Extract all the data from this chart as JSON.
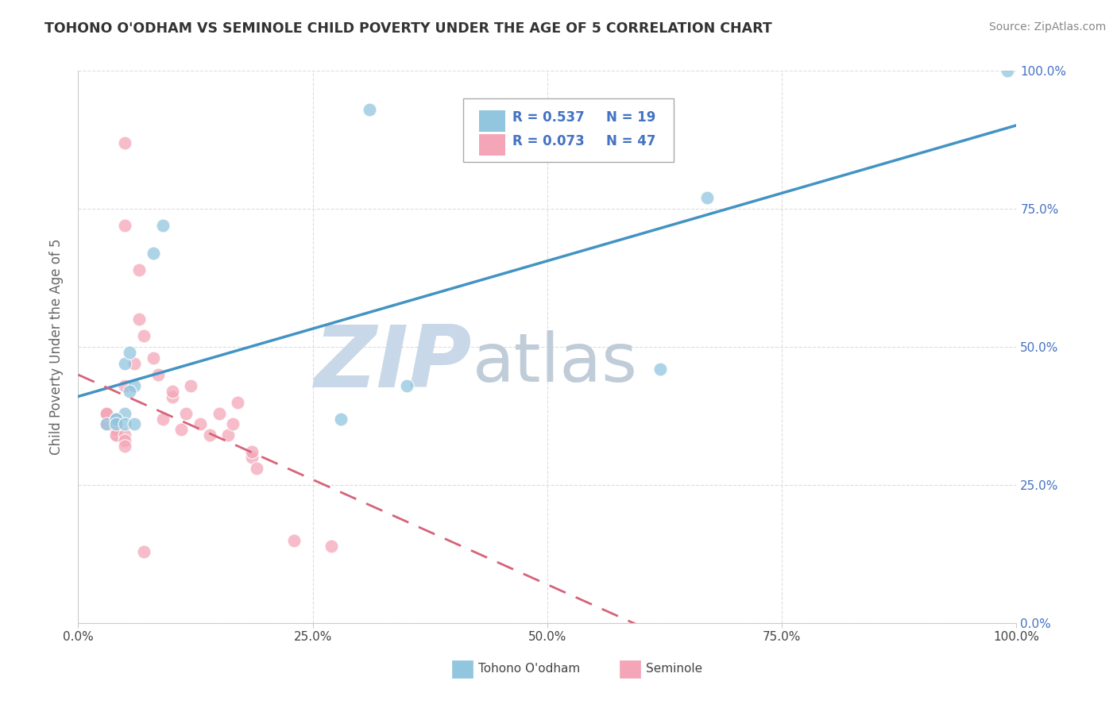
{
  "title": "TOHONO O'ODHAM VS SEMINOLE CHILD POVERTY UNDER THE AGE OF 5 CORRELATION CHART",
  "source": "Source: ZipAtlas.com",
  "ylabel": "Child Poverty Under the Age of 5",
  "xlim": [
    0,
    1.0
  ],
  "ylim": [
    0,
    1.0
  ],
  "legend_r1": "R = 0.537",
  "legend_n1": "N = 19",
  "legend_r2": "R = 0.073",
  "legend_n2": "N = 47",
  "tohono_color": "#92c5de",
  "seminole_color": "#f4a6b8",
  "tohono_line_color": "#4393c3",
  "seminole_line_color": "#d6637a",
  "tohono_x": [
    0.31,
    0.08,
    0.09,
    0.05,
    0.055,
    0.06,
    0.055,
    0.05,
    0.04,
    0.03,
    0.04,
    0.04,
    0.05,
    0.06,
    0.28,
    0.67,
    0.35,
    0.99,
    0.62
  ],
  "tohono_y": [
    0.93,
    0.67,
    0.72,
    0.47,
    0.49,
    0.43,
    0.42,
    0.38,
    0.37,
    0.36,
    0.37,
    0.36,
    0.36,
    0.36,
    0.37,
    0.77,
    0.43,
    1.0,
    0.46
  ],
  "seminole_x": [
    0.05,
    0.05,
    0.065,
    0.065,
    0.07,
    0.08,
    0.085,
    0.09,
    0.1,
    0.1,
    0.11,
    0.115,
    0.12,
    0.13,
    0.14,
    0.15,
    0.16,
    0.165,
    0.17,
    0.185,
    0.185,
    0.19,
    0.03,
    0.03,
    0.03,
    0.03,
    0.04,
    0.04,
    0.04,
    0.04,
    0.04,
    0.04,
    0.04,
    0.04,
    0.04,
    0.04,
    0.04,
    0.04,
    0.04,
    0.05,
    0.05,
    0.05,
    0.05,
    0.06,
    0.07,
    0.23,
    0.27
  ],
  "seminole_y": [
    0.87,
    0.72,
    0.64,
    0.55,
    0.52,
    0.48,
    0.45,
    0.37,
    0.41,
    0.42,
    0.35,
    0.38,
    0.43,
    0.36,
    0.34,
    0.38,
    0.34,
    0.36,
    0.4,
    0.3,
    0.31,
    0.28,
    0.36,
    0.38,
    0.38,
    0.38,
    0.37,
    0.36,
    0.36,
    0.36,
    0.36,
    0.35,
    0.35,
    0.35,
    0.35,
    0.35,
    0.34,
    0.35,
    0.34,
    0.34,
    0.33,
    0.32,
    0.43,
    0.47,
    0.13,
    0.15,
    0.14
  ],
  "background_color": "#ffffff",
  "watermark_zip": "ZIP",
  "watermark_atlas": "atlas",
  "watermark_color_zip": "#c8d8e8",
  "watermark_color_atlas": "#c0ccd8",
  "grid_color": "#dddddd",
  "title_color": "#333333",
  "source_color": "#888888",
  "legend_text_color": "#4472c4",
  "axis_label_color": "#666666",
  "right_tick_color": "#4472c4"
}
